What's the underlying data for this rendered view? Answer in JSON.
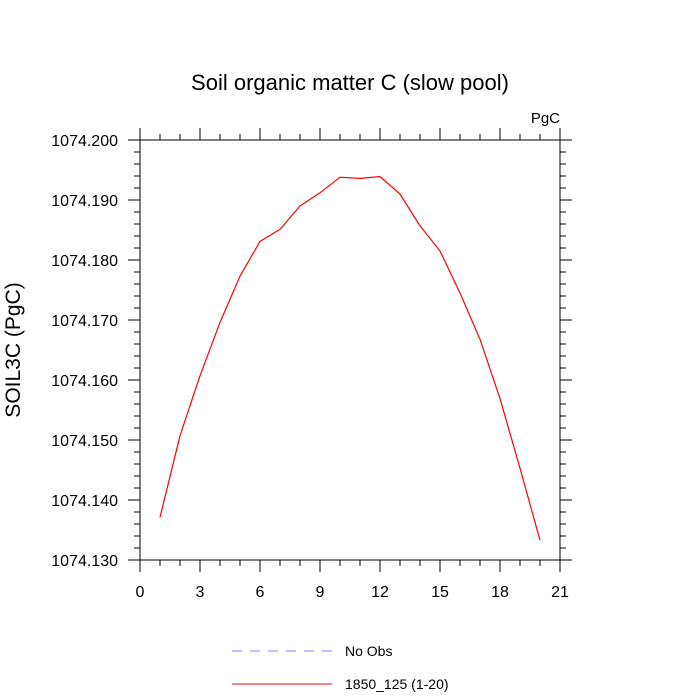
{
  "chart_data": {
    "type": "line",
    "title": "Soil organic matter C (slow pool)",
    "units_label": "PgC",
    "ylabel": "SOIL3C  (PgC)",
    "xlabel": "",
    "xlim": [
      0,
      21
    ],
    "ylim": [
      1074.13,
      1074.2
    ],
    "xticks": [
      0,
      3,
      6,
      9,
      12,
      15,
      18,
      21
    ],
    "xtick_labels": [
      "0",
      "3",
      "6",
      "9",
      "12",
      "15",
      "18",
      "21"
    ],
    "yticks": [
      1074.13,
      1074.14,
      1074.15,
      1074.16,
      1074.17,
      1074.18,
      1074.19,
      1074.2
    ],
    "ytick_labels": [
      "1074.130",
      "1074.140",
      "1074.150",
      "1074.160",
      "1074.170",
      "1074.180",
      "1074.190",
      "1074.200"
    ],
    "series": [
      {
        "name": "1850_125 (1-20)",
        "color": "#ff0000",
        "dash": "solid",
        "x": [
          1,
          2,
          3,
          4,
          5,
          6,
          7,
          8,
          9,
          10,
          11,
          12,
          13,
          14,
          15,
          16,
          17,
          18,
          19,
          20
        ],
        "y": [
          1074.1371,
          1074.1507,
          1074.1607,
          1074.1696,
          1074.1773,
          1074.1831,
          1074.1851,
          1074.189,
          1074.1912,
          1074.1938,
          1074.1936,
          1074.1939,
          1074.191,
          1074.1857,
          1074.1815,
          1074.1745,
          1074.1668,
          1074.1569,
          1074.1453,
          1074.1333
        ]
      }
    ],
    "legend": [
      {
        "label": "No Obs",
        "color": "#8080ff",
        "dash": "dashed"
      },
      {
        "label": "1850_125 (1-20)",
        "color": "#ff0000",
        "dash": "solid"
      }
    ]
  }
}
